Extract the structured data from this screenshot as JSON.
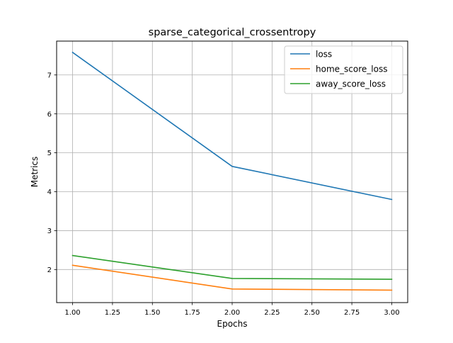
{
  "chart_data": {
    "type": "line",
    "title": "sparse_categorical_crossentropy",
    "xlabel": "Epochs",
    "ylabel": "Metrics",
    "x": [
      1.0,
      2.0,
      3.0
    ],
    "xlim": [
      0.9,
      3.1
    ],
    "ylim": [
      1.15,
      7.87
    ],
    "xticks": [
      1.0,
      1.25,
      1.5,
      1.75,
      2.0,
      2.25,
      2.5,
      2.75,
      3.0
    ],
    "xtick_labels": [
      "1.00",
      "1.25",
      "1.50",
      "1.75",
      "2.00",
      "2.25",
      "2.50",
      "2.75",
      "3.00"
    ],
    "yticks": [
      2,
      3,
      4,
      5,
      6,
      7
    ],
    "ytick_labels": [
      "2",
      "3",
      "4",
      "5",
      "6",
      "7"
    ],
    "grid": true,
    "legend_position": "top-right",
    "series": [
      {
        "name": "loss",
        "color": "#1f77b4",
        "values": [
          7.58,
          4.65,
          3.8
        ]
      },
      {
        "name": "home_score_loss",
        "color": "#ff7f0e",
        "values": [
          2.11,
          1.5,
          1.47
        ]
      },
      {
        "name": "away_score_loss",
        "color": "#2ca02c",
        "values": [
          2.36,
          1.77,
          1.75
        ]
      }
    ]
  }
}
